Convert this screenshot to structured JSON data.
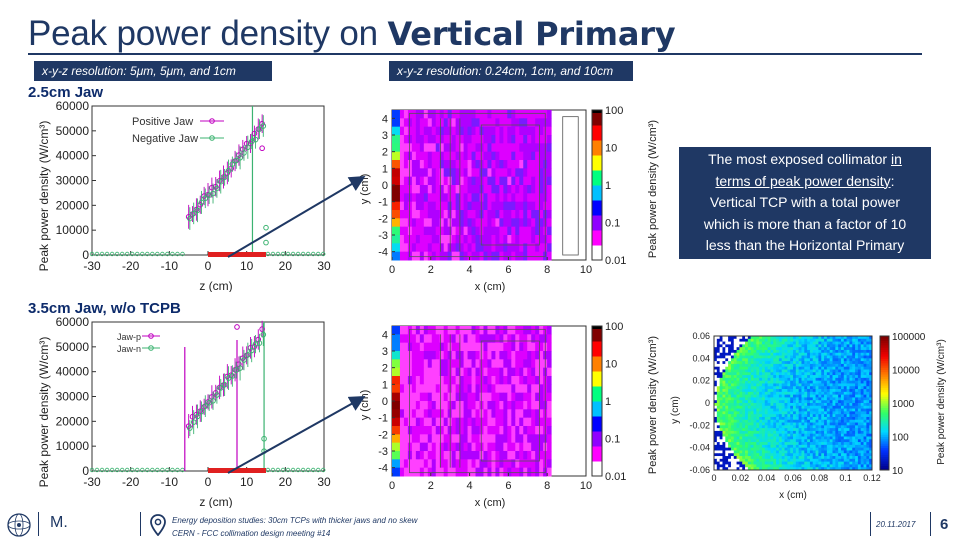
{
  "slide": {
    "title_plain": "Peak power density on ",
    "title_bold": "Vertical Primary",
    "resolution_left": "x-y-z resolution: 5μm, 5μm, and 1cm",
    "resolution_right": "x-y-z resolution: 0.24cm, 1cm, and 10cm",
    "section_top": "2.5cm Jaw",
    "section_bottom": "3.5cm Jaw, w/o TCPB",
    "callout": {
      "line1_a": "The most exposed collimator ",
      "line1_b": "in",
      "line2_a": "terms of peak power density",
      "line2_b": ":",
      "line3": "Vertical TCP with a total power",
      "line4": "which is more than a factor of 10",
      "line5": "less than the Horizontal Primary"
    }
  },
  "footer": {
    "author": "M.",
    "talk_title": "Energy deposition studies: 30cm TCPs with thicker jaws and no skew",
    "meeting": "CERN - FCC collimation design meeting #14",
    "date": "20.11.2017",
    "page": "6"
  },
  "colors": {
    "accent": "#1f3864",
    "green": "#3cb371",
    "violet": "#c000c0",
    "red": "#e02020"
  },
  "chart_data": [
    {
      "id": "top-profile",
      "type": "scatter",
      "title": "",
      "xlabel": "z (cm)",
      "ylabel": "Peak power density (W/cm³)",
      "xlim": [
        -30,
        30
      ],
      "ylim": [
        0,
        60000
      ],
      "xticks": [
        "-30",
        "-20",
        "-10",
        "0",
        "10",
        "20",
        "30"
      ],
      "yticks": [
        "0",
        "10000",
        "20000",
        "30000",
        "40000",
        "50000",
        "60000"
      ],
      "legend": [
        "Positive Jaw",
        "Negative Jaw"
      ],
      "series": [
        {
          "name": "Positive Jaw",
          "x": [
            -5,
            -4,
            -3,
            -2,
            -1,
            0,
            1,
            2,
            3,
            4,
            5,
            6,
            7,
            8,
            9,
            10,
            11,
            12,
            13,
            14
          ],
          "y": [
            15000,
            17000,
            19000,
            21000,
            23000,
            24000,
            26000,
            28000,
            30000,
            32000,
            34000,
            36000,
            38000,
            40000,
            42000,
            44000,
            46000,
            48000,
            50000,
            52000
          ]
        },
        {
          "name": "Negative Jaw",
          "x": [
            -5,
            -4,
            -3,
            -2,
            -1,
            0,
            1,
            2,
            3,
            4,
            5,
            6,
            7,
            8,
            9,
            10,
            11,
            12,
            13,
            14
          ],
          "y": [
            14000,
            16500,
            18500,
            20500,
            22500,
            23500,
            25500,
            27500,
            29500,
            31500,
            33500,
            35500,
            37500,
            39500,
            41500,
            43500,
            45500,
            47500,
            49500,
            51500
          ]
        }
      ]
    },
    {
      "id": "top-map",
      "type": "heatmap",
      "xlabel": "x (cm)",
      "ylabel": "y (cm)",
      "xticks": [
        "0",
        "2",
        "4",
        "6",
        "8",
        "10"
      ],
      "yticks": [
        "4",
        "3",
        "2",
        "1",
        "0",
        "-1",
        "-2",
        "-3",
        "-4"
      ],
      "colorbar_label": "Peak power density (W/cm³)",
      "colorbar_ticks": [
        "100",
        "10",
        "1",
        "0.1",
        "0.01"
      ]
    },
    {
      "id": "bottom-profile",
      "type": "scatter",
      "xlabel": "z (cm)",
      "ylabel": "Peak power density (W/cm³)",
      "xlim": [
        -30,
        30
      ],
      "ylim": [
        0,
        60000
      ],
      "xticks": [
        "-30",
        "-20",
        "-10",
        "0",
        "10",
        "20",
        "30"
      ],
      "yticks": [
        "0",
        "10000",
        "20000",
        "30000",
        "40000",
        "50000",
        "60000"
      ],
      "legend": [
        "Jaw-p",
        "Jaw-n"
      ],
      "series": [
        {
          "name": "Jaw-p",
          "x": [
            -5,
            -4,
            -3,
            -2,
            -1,
            0,
            1,
            2,
            3,
            4,
            5,
            6,
            7,
            8,
            9,
            10,
            11,
            12,
            13,
            14
          ],
          "y": [
            19000,
            21000,
            22500,
            24000,
            26000,
            27500,
            29000,
            31000,
            33000,
            35000,
            37000,
            39000,
            41000,
            43000,
            45000,
            47000,
            49000,
            51000,
            53000,
            56000
          ]
        },
        {
          "name": "Jaw-n",
          "x": [
            -5,
            -4,
            -3,
            -2,
            -1,
            0,
            1,
            2,
            3,
            4,
            5,
            6,
            7,
            8,
            9,
            10,
            11,
            12,
            13,
            14
          ],
          "y": [
            18500,
            20500,
            22000,
            23500,
            25500,
            27000,
            28500,
            30500,
            32500,
            34500,
            36500,
            38500,
            40500,
            42500,
            44500,
            46500,
            48500,
            50500,
            52500,
            55000
          ]
        }
      ]
    },
    {
      "id": "bottom-map",
      "type": "heatmap",
      "xlabel": "x (cm)",
      "ylabel": "y (cm)",
      "xticks": [
        "0",
        "2",
        "4",
        "6",
        "8",
        "10"
      ],
      "yticks": [
        "4",
        "3",
        "2",
        "1",
        "0",
        "-1",
        "-2",
        "-3",
        "-4"
      ],
      "colorbar_label": "Peak power density (W/cm³)",
      "colorbar_ticks": [
        "100",
        "10",
        "1",
        "0.1",
        "0.01"
      ]
    },
    {
      "id": "bottom-fine-map",
      "type": "heatmap",
      "xlabel": "x (cm)",
      "ylabel": "y (cm)",
      "xticks": [
        "0",
        "0.02",
        "0.04",
        "0.06",
        "0.08",
        "0.1",
        "0.12"
      ],
      "yticks": [
        "0.06",
        "0.04",
        "0.02",
        "0",
        "-0.02",
        "-0.04",
        "-0.06"
      ],
      "colorbar_label": "Peak power density (W/cm³)",
      "colorbar_ticks": [
        "100000",
        "10000",
        "1000",
        "100",
        "10"
      ]
    }
  ]
}
